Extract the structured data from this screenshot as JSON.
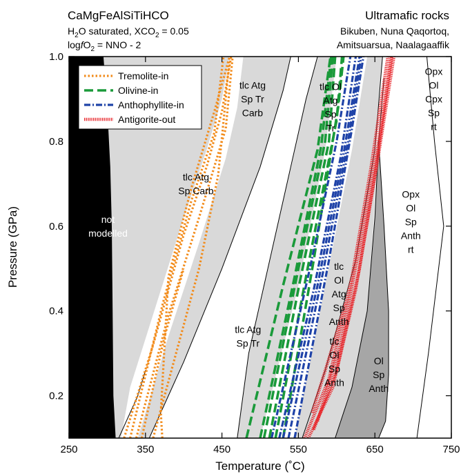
{
  "header": {
    "system": "CaMgFeAlSiTiHCO",
    "cond_h2o_pre": "H",
    "cond_h2o_sub": "2",
    "cond_h2o_post": "O saturated, XCO",
    "cond_xco2_sub": "2",
    "cond_xco2_post": " = 0.05",
    "cond_log": "log",
    "cond_f": "f",
    "cond_o": "O",
    "cond_o_sub": "2",
    "cond_buffer": " = NNO - 2",
    "rock_title": "Ultramafic rocks",
    "localities_1": "Bikuben, Nuna Qaqortoq,",
    "localities_2": "Amitsuarsua, Naalagaaffik"
  },
  "chart_data": {
    "type": "line",
    "xlabel": "Temperature (˚C)",
    "ylabel": "Pressure (GPa)",
    "xlim": [
      250,
      750
    ],
    "ylim": [
      0.1,
      1.0
    ],
    "xticks": [
      250,
      350,
      450,
      550,
      650,
      750
    ],
    "yticks": [
      0.2,
      0.4,
      0.6,
      0.8,
      1.0
    ],
    "colors": {
      "not_modelled": "#000000",
      "stable_light": "#d9d9d9",
      "stable_dark": "#a6a6a6",
      "tremolite": "#f28c1c",
      "olivine": "#1a9a3a",
      "anthophyllite": "#1f43a8",
      "antigorite": "#e8262b"
    },
    "legend": {
      "placement": "top-left",
      "entries": [
        {
          "label": "Tremolite-in",
          "color": "#f28c1c",
          "style": "dotted"
        },
        {
          "label": "Olivine-in",
          "color": "#1a9a3a",
          "style": "dashed"
        },
        {
          "label": "Anthophyllite-in",
          "color": "#1f43a8",
          "style": "dash-dot"
        },
        {
          "label": "Antigorite-out",
          "color": "#e8262b",
          "style": "fine-dotted"
        }
      ]
    },
    "field_labels": [
      {
        "lines": [
          "not",
          "modelled"
        ],
        "x": 301,
        "y": 0.6,
        "color": "#ffffff"
      },
      {
        "lines": [
          "tlc Atg",
          "Sp Carb"
        ],
        "x": 416,
        "y": 0.7,
        "color": "#000000"
      },
      {
        "lines": [
          "tlc Atg",
          "Sp Tr",
          "Carb"
        ],
        "x": 490,
        "y": 0.9,
        "color": "#000000"
      },
      {
        "lines": [
          "tlc Atg",
          "Sp Tr"
        ],
        "x": 484,
        "y": 0.34,
        "color": "#000000"
      },
      {
        "lines": [
          "tlc Ol",
          "Atg",
          "Sp",
          "Tr"
        ],
        "x": 592,
        "y": 0.88,
        "color": "#000000"
      },
      {
        "lines": [
          "tlc",
          "Ol",
          "Atg",
          "Sp",
          "Anth"
        ],
        "x": 603,
        "y": 0.44,
        "color": "#000000"
      },
      {
        "lines": [
          "tlc",
          "Ol",
          "Sp",
          "Anth"
        ],
        "x": 597,
        "y": 0.28,
        "color": "#000000"
      },
      {
        "lines": [
          "Ol",
          "Sp",
          "Anth"
        ],
        "x": 655,
        "y": 0.25,
        "color": "#000000"
      },
      {
        "lines": [
          "Opx",
          "Ol",
          "Sp",
          "Anth",
          "rt"
        ],
        "x": 697,
        "y": 0.61,
        "color": "#000000"
      },
      {
        "lines": [
          "Opx",
          "Ol",
          "Cpx",
          "Sp",
          "rt"
        ],
        "x": 727,
        "y": 0.9,
        "color": "#000000"
      }
    ],
    "series": [
      {
        "name": "Tremolite-in",
        "group": "tremolite",
        "points": [
          [
            372,
            0.1
          ],
          [
            370,
            0.16
          ],
          [
            380,
            0.48
          ],
          [
            410,
            0.69
          ],
          [
            440,
            0.87
          ],
          [
            460,
            1.0
          ]
        ]
      },
      {
        "name": "Tremolite-in",
        "group": "tremolite",
        "points": [
          [
            322,
            0.1
          ],
          [
            360,
            0.32
          ],
          [
            400,
            0.58
          ],
          [
            430,
            0.74
          ],
          [
            450,
            0.87
          ],
          [
            462,
            1.0
          ]
        ]
      },
      {
        "name": "Tremolite-in",
        "group": "tremolite",
        "points": [
          [
            338,
            0.1
          ],
          [
            380,
            0.39
          ],
          [
            420,
            0.62
          ],
          [
            455,
            0.83
          ],
          [
            464,
            1.0
          ]
        ]
      },
      {
        "name": "Tremolite-in",
        "group": "tremolite",
        "points": [
          [
            330,
            0.1
          ],
          [
            373,
            0.42
          ],
          [
            410,
            0.66
          ],
          [
            440,
            0.82
          ],
          [
            452,
            1.0
          ]
        ]
      },
      {
        "name": "Tremolite-in",
        "group": "tremolite",
        "points": [
          [
            360,
            0.1
          ],
          [
            390,
            0.3
          ],
          [
            420,
            0.5
          ],
          [
            445,
            0.72
          ],
          [
            455,
            0.9
          ],
          [
            460,
            1.0
          ]
        ]
      },
      {
        "name": "Tremolite-in",
        "group": "tremolite",
        "points": [
          [
            345,
            0.1
          ],
          [
            360,
            0.22
          ],
          [
            375,
            0.34
          ],
          [
            400,
            0.5
          ]
        ]
      },
      {
        "name": "Olivine-in",
        "group": "olivine",
        "points": [
          [
            482,
            0.1
          ],
          [
            530,
            0.46
          ],
          [
            575,
            0.78
          ],
          [
            592,
            1.0
          ]
        ]
      },
      {
        "name": "Olivine-in",
        "group": "olivine",
        "points": [
          [
            505,
            0.1
          ],
          [
            550,
            0.5
          ],
          [
            585,
            0.8
          ],
          [
            595,
            1.0
          ]
        ]
      },
      {
        "name": "Olivine-in",
        "group": "olivine",
        "points": [
          [
            500,
            0.1
          ],
          [
            545,
            0.48
          ],
          [
            580,
            0.79
          ],
          [
            593,
            1.0
          ]
        ]
      },
      {
        "name": "Olivine-in",
        "group": "olivine",
        "points": [
          [
            520,
            0.1
          ],
          [
            562,
            0.5
          ],
          [
            600,
            0.85
          ],
          [
            607,
            1.0
          ]
        ]
      },
      {
        "name": "Olivine-in",
        "group": "olivine",
        "points": [
          [
            530,
            0.1
          ],
          [
            570,
            0.52
          ],
          [
            602,
            0.88
          ],
          [
            609,
            1.0
          ]
        ]
      },
      {
        "name": "Olivine-in",
        "group": "olivine",
        "points": [
          [
            512,
            0.1
          ],
          [
            552,
            0.47
          ],
          [
            590,
            0.8
          ],
          [
            598,
            1.0
          ]
        ]
      },
      {
        "name": "Anthophyllite-in",
        "group": "anthophyllite",
        "points": [
          [
            525,
            0.1
          ],
          [
            570,
            0.45
          ],
          [
            605,
            0.76
          ],
          [
            625,
            1.0
          ]
        ]
      },
      {
        "name": "Anthophyllite-in",
        "group": "anthophyllite",
        "points": [
          [
            530,
            0.1
          ],
          [
            575,
            0.46
          ],
          [
            610,
            0.78
          ],
          [
            630,
            1.0
          ]
        ]
      },
      {
        "name": "Anthophyllite-in",
        "group": "anthophyllite",
        "points": [
          [
            537,
            0.1
          ],
          [
            582,
            0.49
          ],
          [
            615,
            0.8
          ],
          [
            632,
            1.0
          ]
        ]
      },
      {
        "name": "Anthophyllite-in",
        "group": "anthophyllite",
        "points": [
          [
            545,
            0.1
          ],
          [
            590,
            0.52
          ],
          [
            620,
            0.83
          ],
          [
            635,
            1.0
          ]
        ]
      },
      {
        "name": "Anthophyllite-in",
        "group": "anthophyllite",
        "points": [
          [
            515,
            0.1
          ],
          [
            565,
            0.5
          ],
          [
            600,
            0.8
          ],
          [
            618,
            1.0
          ]
        ]
      },
      {
        "name": "Antigorite-out",
        "group": "antigorite",
        "points": [
          [
            563,
            0.1
          ],
          [
            595,
            0.22
          ],
          [
            625,
            0.45
          ],
          [
            650,
            0.72
          ],
          [
            672,
            1.0
          ]
        ]
      },
      {
        "name": "Antigorite-out",
        "group": "antigorite",
        "points": [
          [
            570,
            0.12
          ],
          [
            600,
            0.26
          ],
          [
            630,
            0.5
          ],
          [
            655,
            0.77
          ],
          [
            675,
            1.0
          ]
        ]
      },
      {
        "name": "Antigorite-out",
        "group": "antigorite",
        "points": [
          [
            558,
            0.1
          ],
          [
            590,
            0.24
          ],
          [
            620,
            0.48
          ],
          [
            645,
            0.74
          ],
          [
            667,
            1.0
          ]
        ]
      },
      {
        "name": "Antigorite-out",
        "group": "antigorite",
        "points": [
          [
            575,
            0.14
          ],
          [
            605,
            0.32
          ],
          [
            630,
            0.55
          ],
          [
            655,
            0.8
          ],
          [
            671,
            1.0
          ]
        ]
      },
      {
        "name": "Antigorite-out",
        "group": "antigorite",
        "points": [
          [
            568,
            0.16
          ],
          [
            592,
            0.3
          ],
          [
            612,
            0.42
          ]
        ]
      }
    ]
  }
}
